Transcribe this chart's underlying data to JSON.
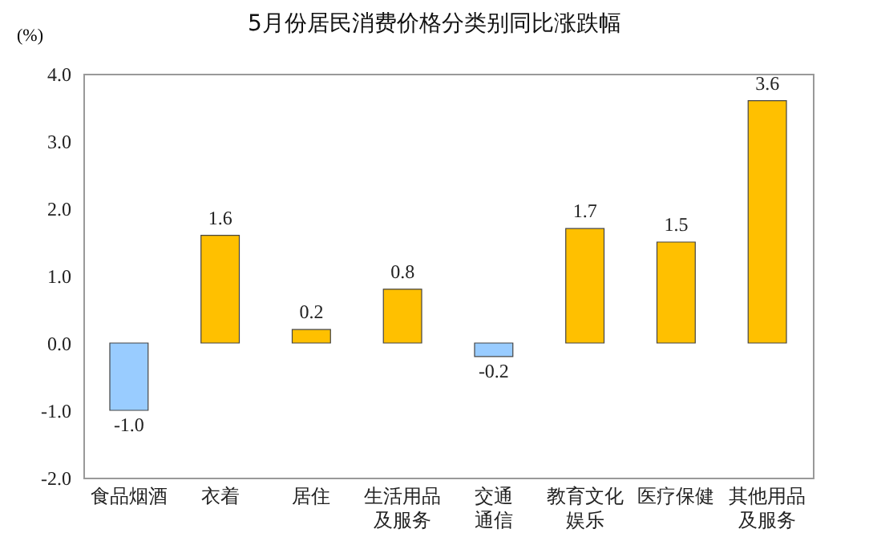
{
  "chart_data": {
    "type": "bar",
    "title": "5月份居民消费价格分类别同比涨跌幅",
    "ylabel": "(%)",
    "categories": [
      "食品烟酒",
      "衣着",
      "居住",
      "生活用品及服务",
      "交通通信",
      "教育文化娱乐",
      "医疗保健",
      "其他用品及服务"
    ],
    "values": [
      -1.0,
      1.6,
      0.2,
      0.8,
      -0.2,
      1.7,
      1.5,
      3.6
    ],
    "value_labels": [
      "-1.0",
      "1.6",
      "0.2",
      "0.8",
      "-0.2",
      "1.7",
      "1.5",
      "3.6"
    ],
    "colors": [
      "#99ccff",
      "#ffc000",
      "#ffc000",
      "#ffc000",
      "#99ccff",
      "#ffc000",
      "#ffc000",
      "#ffc000"
    ],
    "ylim": [
      -2.0,
      4.0
    ],
    "yticks": [
      {
        "value": -2,
        "label": "-2.0"
      },
      {
        "value": -1,
        "label": "-1.0"
      },
      {
        "value": 0,
        "label": "0.0"
      },
      {
        "value": 1,
        "label": "1.0"
      },
      {
        "value": 2,
        "label": "2.0"
      },
      {
        "value": 3,
        "label": "3.0"
      },
      {
        "value": 4,
        "label": "4.0"
      }
    ],
    "grid": false
  }
}
